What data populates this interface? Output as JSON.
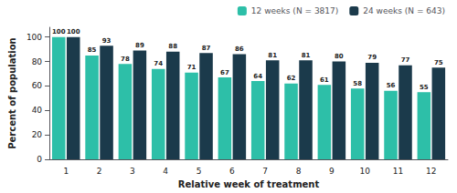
{
  "chart_data": {
    "type": "bar",
    "xlabel": "Relative week of treatment",
    "ylabel": "Percent of population",
    "categories": [
      "1",
      "2",
      "3",
      "4",
      "5",
      "6",
      "7",
      "8",
      "9",
      "10",
      "11",
      "12"
    ],
    "series": [
      {
        "name": "12 weeks (N = 3817)",
        "color": "#2dbfa8",
        "values": [
          100,
          85,
          78,
          74,
          71,
          67,
          64,
          62,
          61,
          58,
          56,
          55
        ]
      },
      {
        "name": "24 weeks (N = 643)",
        "color": "#1b3a4b",
        "values": [
          100,
          93,
          89,
          88,
          87,
          86,
          81,
          81,
          80,
          79,
          77,
          75
        ]
      }
    ],
    "ylim": [
      0,
      108
    ],
    "yticks": [
      0,
      20,
      40,
      60,
      80,
      100
    ],
    "grid": false,
    "legend": "upper right",
    "data_labels": true
  }
}
